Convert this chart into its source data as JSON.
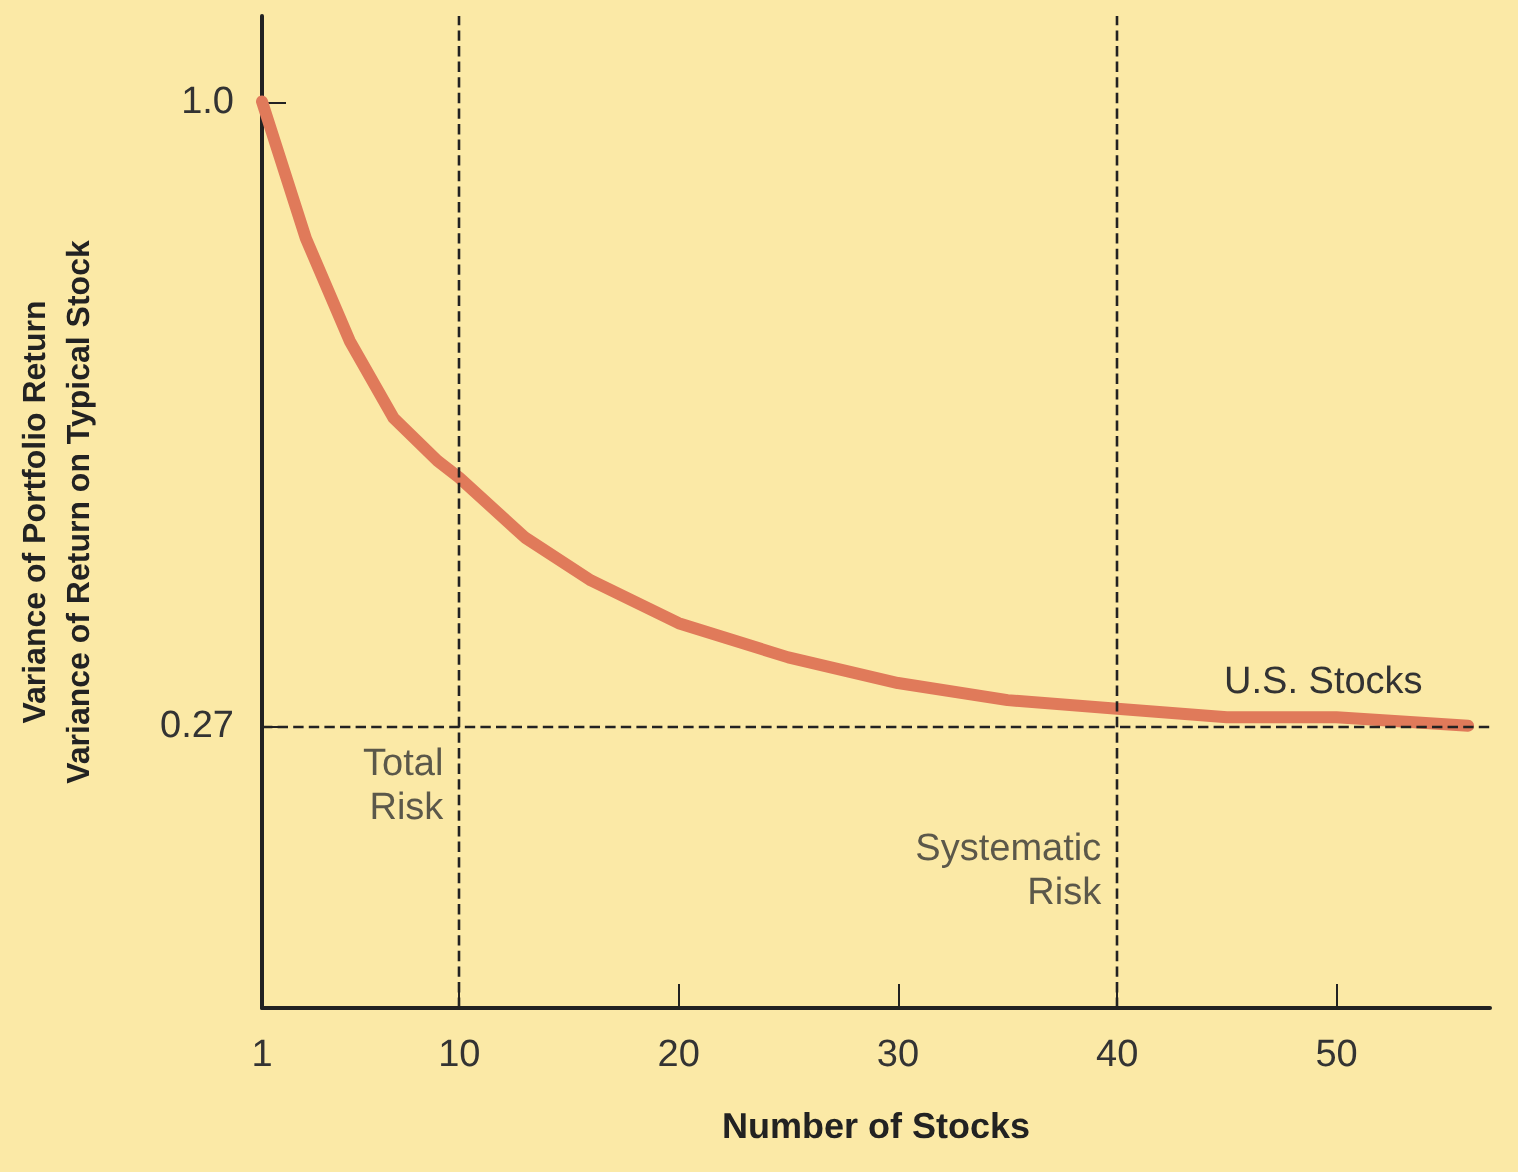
{
  "chart_data": {
    "type": "line",
    "xlabel": "Number of Stocks",
    "ylabel": "Variance of Portfolio Return\nVariance of Return on Typical Stock",
    "x": [
      1,
      3,
      5,
      7,
      9,
      10,
      13,
      16,
      20,
      25,
      30,
      35,
      40,
      45,
      50,
      56
    ],
    "series": [
      {
        "name": "U.S. Stocks",
        "color": "#e07a5a",
        "values": [
          1.0,
          0.84,
          0.72,
          0.63,
          0.58,
          0.56,
          0.49,
          0.44,
          0.39,
          0.35,
          0.32,
          0.3,
          0.29,
          0.28,
          0.28,
          0.27
        ]
      }
    ],
    "xlim": [
      1,
      57
    ],
    "xticks": [
      1,
      10,
      20,
      30,
      40,
      50
    ],
    "ylim": [
      -0.06,
      1.1
    ],
    "yticks": [
      0.27,
      {
        "value": 1,
        "label": "1.0"
      }
    ],
    "ref_lines": [
      {
        "axis": "y",
        "value": 0.27,
        "label": null,
        "color": "#222222",
        "line_style": "dashed"
      },
      {
        "axis": "x",
        "value": 10,
        "label": null,
        "color": "#222222",
        "line_style": "dashed"
      },
      {
        "axis": "x",
        "value": 40,
        "label": null,
        "color": "#222222",
        "line_style": "dashed"
      }
    ],
    "annotations": [
      {
        "text": "Total\nRisk",
        "x": 10,
        "y": 0.2
      },
      {
        "text": "Systematic\nRisk",
        "x": 40,
        "y": 0.1
      }
    ],
    "grid": false,
    "legend": false,
    "marker": "none",
    "line_style": "solid"
  }
}
